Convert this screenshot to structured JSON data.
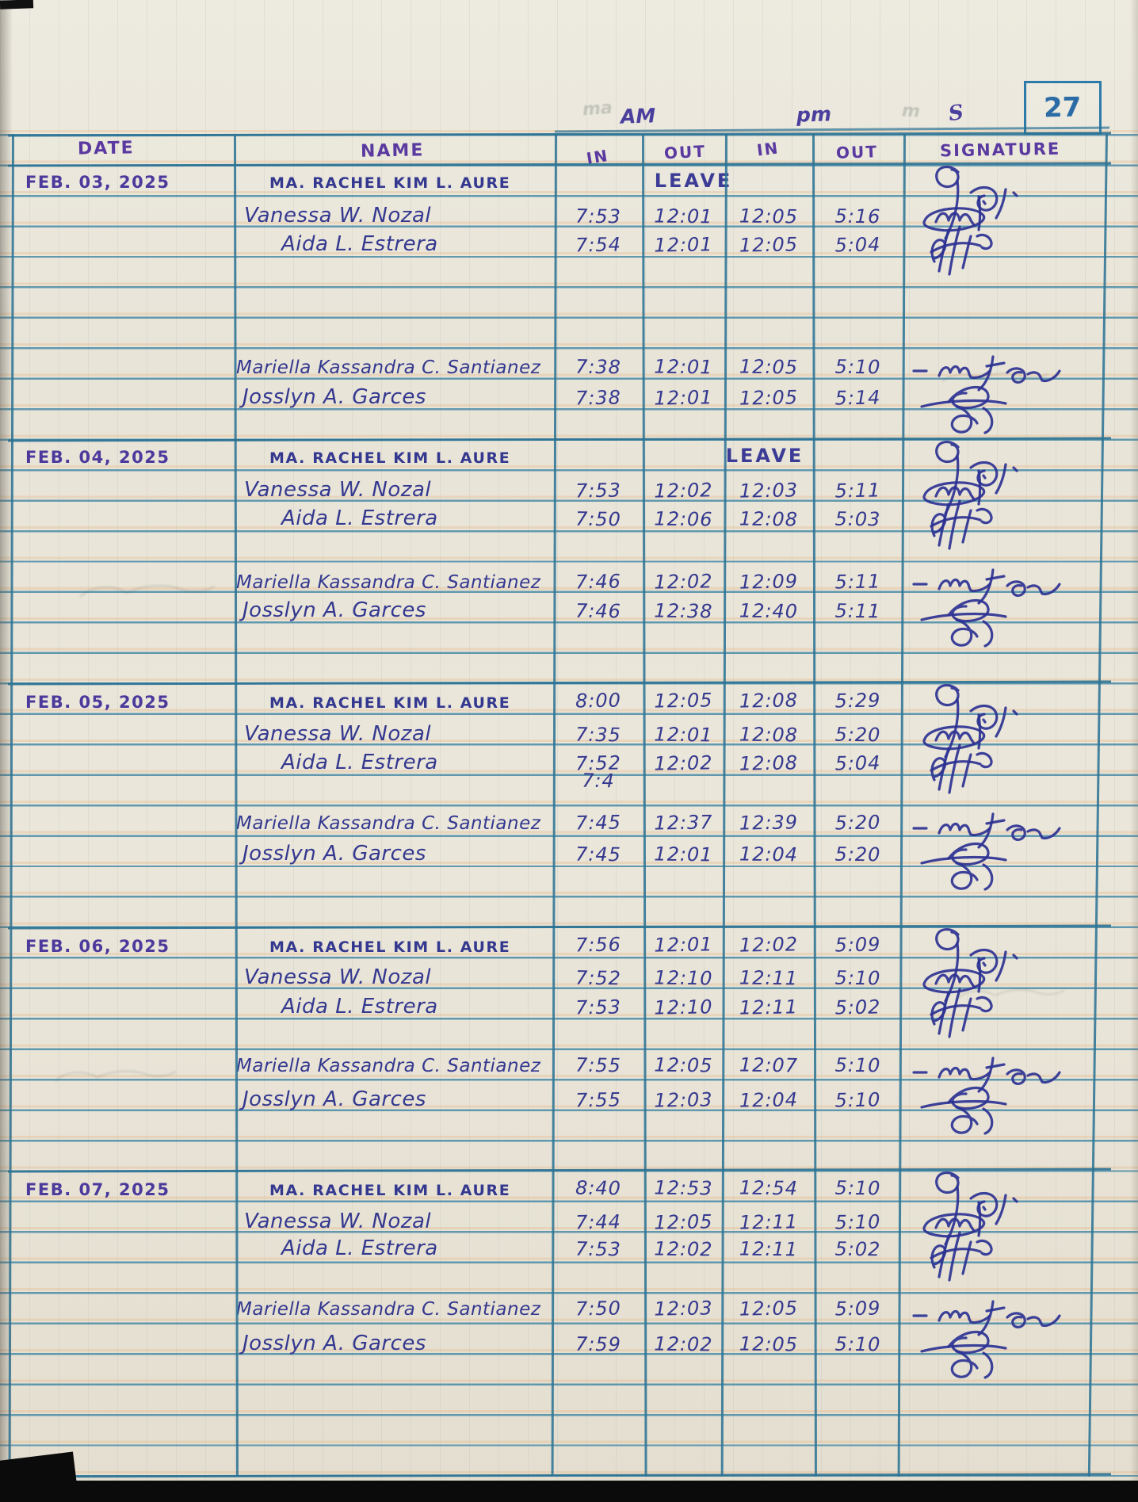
{
  "page": {
    "number": "27"
  },
  "header": {
    "am_group": "AM",
    "pm_group": "pm",
    "sig_group": "S",
    "date": "DATE",
    "name": "NAME",
    "am_in": "IN",
    "am_out": "OUT",
    "pm_in": "IN",
    "pm_out": "OUT",
    "signature": "SIGNATURE"
  },
  "colors": {
    "paper": "#e8e4d8",
    "grid_teal": "#2e7495",
    "ink_blue": "#34388f",
    "ink_violet": "#4b3a9c",
    "page_number_blue": "#2b6ca6"
  },
  "rows": [
    {
      "date": "FEB. 03, 2025",
      "name": "MA. RACHEL KIM L. AURE",
      "leave": "LEAVE",
      "sig": "aure"
    },
    {
      "name": "Vanessa W. Nozal",
      "am_in": "7:53",
      "am_out": "12:01",
      "pm_in": "12:05",
      "pm_out": "5:16",
      "sig": "nozal"
    },
    {
      "name": "Aida L. Estrera",
      "am_in": "7:54",
      "am_out": "12:01",
      "pm_in": "12:05",
      "pm_out": "5:04",
      "sig": "estrera"
    },
    {
      "name": "Mariella Kassandra C. Santianez",
      "am_in": "7:38",
      "am_out": "12:01",
      "pm_in": "12:05",
      "pm_out": "5:10",
      "sig": "santianez"
    },
    {
      "name": "Josslyn A. Garces",
      "am_in": "7:38",
      "am_out": "12:01",
      "pm_in": "12:05",
      "pm_out": "5:14",
      "sig": "garces"
    },
    {
      "date": "FEB. 04, 2025",
      "name": "MA. RACHEL KIM L. AURE",
      "leave": "LEAVE",
      "sig": "aure"
    },
    {
      "name": "Vanessa W. Nozal",
      "am_in": "7:53",
      "am_out": "12:02",
      "pm_in": "12:03",
      "pm_out": "5:11",
      "sig": "nozal"
    },
    {
      "name": "Aida L. Estrera",
      "am_in": "7:50",
      "am_out": "12:06",
      "pm_in": "12:08",
      "pm_out": "5:03",
      "sig": "estrera"
    },
    {
      "name": "Mariella Kassandra C. Santianez",
      "am_in": "7:46",
      "am_out": "12:02",
      "pm_in": "12:09",
      "pm_out": "5:11",
      "sig": "santianez"
    },
    {
      "name": "Josslyn A. Garces",
      "am_in": "7:46",
      "am_out": "12:38",
      "pm_in": "12:40",
      "pm_out": "5:11",
      "sig": "garces"
    },
    {
      "date": "FEB. 05, 2025",
      "name": "MA. RACHEL KIM L. AURE",
      "am_in": "8:00",
      "am_out": "12:05",
      "pm_in": "12:08",
      "pm_out": "5:29",
      "sig": "aure"
    },
    {
      "name": "Vanessa W. Nozal",
      "am_in": "7:35",
      "am_out": "12:01",
      "pm_in": "12:08",
      "pm_out": "5:20",
      "sig": "nozal"
    },
    {
      "name": "Aida L. Estrera",
      "am_in": "7:52",
      "am_out": "12:02",
      "pm_in": "12:08",
      "pm_out": "5:04",
      "sig": "estrera"
    },
    {
      "am_in": "7:4"
    },
    {
      "name": "Mariella Kassandra C. Santianez",
      "am_in": "7:45",
      "am_out": "12:37",
      "pm_in": "12:39",
      "pm_out": "5:20",
      "sig": "santianez"
    },
    {
      "name": "Josslyn A. Garces",
      "am_in": "7:45",
      "am_out": "12:01",
      "pm_in": "12:04",
      "pm_out": "5:20",
      "sig": "garces"
    },
    {
      "date": "FEB. 06, 2025",
      "name": "MA. RACHEL KIM L. AURE",
      "am_in": "7:56",
      "am_out": "12:01",
      "pm_in": "12:02",
      "pm_out": "5:09",
      "sig": "aure"
    },
    {
      "name": "Vanessa W. Nozal",
      "am_in": "7:52",
      "am_out": "12:10",
      "pm_in": "12:11",
      "pm_out": "5:10",
      "sig": "nozal"
    },
    {
      "name": "Aida L. Estrera",
      "am_in": "7:53",
      "am_out": "12:10",
      "pm_in": "12:11",
      "pm_out": "5:02",
      "sig": "estrera"
    },
    {
      "name": "Mariella Kassandra C. Santianez",
      "am_in": "7:55",
      "am_out": "12:05",
      "pm_in": "12:07",
      "pm_out": "5:10",
      "sig": "santianez"
    },
    {
      "name": "Josslyn A. Garces",
      "am_in": "7:55",
      "am_out": "12:03",
      "pm_in": "12:04",
      "pm_out": "5:10",
      "sig": "garces"
    },
    {
      "date": "FEB. 07, 2025",
      "name": "MA. RACHEL KIM L. AURE",
      "am_in": "8:40",
      "am_out": "12:53",
      "pm_in": "12:54",
      "pm_out": "5:10",
      "sig": "aure"
    },
    {
      "name": "Vanessa W. Nozal",
      "am_in": "7:44",
      "am_out": "12:05",
      "pm_in": "12:11",
      "pm_out": "5:10",
      "sig": "nozal"
    },
    {
      "name": "Aida L. Estrera",
      "am_in": "7:53",
      "am_out": "12:02",
      "pm_in": "12:11",
      "pm_out": "5:02",
      "sig": "estrera"
    },
    {
      "name": "Mariella Kassandra C. Santianez",
      "am_in": "7:50",
      "am_out": "12:03",
      "pm_in": "12:05",
      "pm_out": "5:09",
      "sig": "santianez"
    },
    {
      "name": "Josslyn A. Garces",
      "am_in": "7:59",
      "am_out": "12:02",
      "pm_in": "12:05",
      "pm_out": "5:10",
      "sig": "garces"
    }
  ]
}
